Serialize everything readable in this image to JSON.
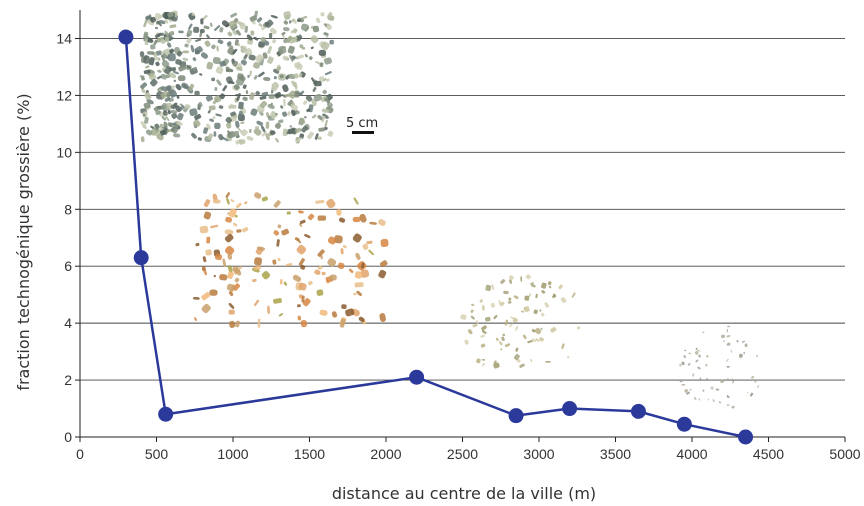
{
  "chart_data": {
    "type": "line",
    "title": "",
    "xlabel": "distance au centre de la ville (m)",
    "ylabel": "fraction technogénique grossière (%)",
    "xlim": [
      0,
      5000
    ],
    "ylim": [
      0,
      15
    ],
    "xticks": [
      0,
      500,
      1000,
      1500,
      2000,
      2500,
      3000,
      3500,
      4000,
      4500,
      5000
    ],
    "yticks": [
      0,
      2,
      4,
      6,
      8,
      10,
      12,
      14
    ],
    "grid": "horizontal",
    "series": [
      {
        "x": [
          300,
          400,
          560,
          2200,
          2850,
          3200,
          3650,
          3950,
          4350
        ],
        "y": [
          14.05,
          6.3,
          0.8,
          2.1,
          0.75,
          1.0,
          0.9,
          0.45,
          0.0
        ],
        "color": "#2b3a9a"
      }
    ],
    "annotations": {
      "scale_bar": "5 cm"
    }
  }
}
